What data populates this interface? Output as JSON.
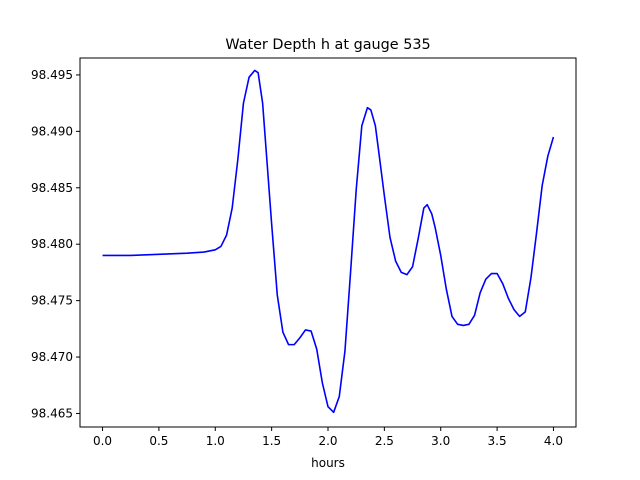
{
  "chart_data": {
    "type": "line",
    "title": "Water Depth h at gauge 535",
    "xlabel": "hours",
    "ylabel": "",
    "xlim": [
      -0.2,
      4.2
    ],
    "ylim": [
      98.4638,
      98.4965
    ],
    "grid": false,
    "legend": "none",
    "x_ticks": [
      0.0,
      0.5,
      1.0,
      1.5,
      2.0,
      2.5,
      3.0,
      3.5,
      4.0
    ],
    "x_tick_labels": [
      "0.0",
      "0.5",
      "1.0",
      "1.5",
      "2.0",
      "2.5",
      "3.0",
      "3.5",
      "4.0"
    ],
    "y_ticks": [
      98.465,
      98.47,
      98.475,
      98.48,
      98.485,
      98.49,
      98.495
    ],
    "y_tick_labels": [
      "98.465",
      "98.470",
      "98.475",
      "98.480",
      "98.485",
      "98.490",
      "98.495"
    ],
    "series": [
      {
        "color": "#0000ff",
        "x": [
          0.0,
          0.25,
          0.5,
          0.75,
          0.9,
          1.0,
          1.05,
          1.1,
          1.15,
          1.2,
          1.25,
          1.3,
          1.35,
          1.38,
          1.42,
          1.45,
          1.5,
          1.55,
          1.6,
          1.65,
          1.7,
          1.75,
          1.8,
          1.85,
          1.9,
          1.95,
          2.0,
          2.05,
          2.1,
          2.15,
          2.2,
          2.25,
          2.3,
          2.35,
          2.38,
          2.42,
          2.45,
          2.5,
          2.55,
          2.6,
          2.65,
          2.7,
          2.75,
          2.8,
          2.85,
          2.88,
          2.92,
          2.95,
          3.0,
          3.05,
          3.1,
          3.15,
          3.2,
          3.25,
          3.3,
          3.35,
          3.4,
          3.45,
          3.5,
          3.55,
          3.6,
          3.65,
          3.7,
          3.75,
          3.8,
          3.85,
          3.9,
          3.95,
          4.0
        ],
        "y": [
          98.479,
          98.479,
          98.4791,
          98.4792,
          98.4793,
          98.4795,
          98.4798,
          98.4808,
          98.4832,
          98.4875,
          98.4925,
          98.4948,
          98.4954,
          98.4952,
          98.4925,
          98.4885,
          98.4818,
          98.4755,
          98.4722,
          98.4711,
          98.4711,
          98.4717,
          98.4724,
          98.4723,
          98.4707,
          98.4677,
          98.4656,
          98.4651,
          98.4665,
          98.4705,
          98.4775,
          98.4848,
          98.4905,
          98.4921,
          98.4919,
          98.4905,
          98.4882,
          98.4843,
          98.4806,
          98.4785,
          98.4775,
          98.4773,
          98.478,
          98.4805,
          98.4832,
          98.4835,
          98.4827,
          98.4815,
          98.479,
          98.476,
          98.4736,
          98.4729,
          98.4728,
          98.4729,
          98.4737,
          98.4757,
          98.4769,
          98.4774,
          98.4774,
          98.4765,
          98.4752,
          98.4742,
          98.4736,
          98.474,
          98.477,
          98.481,
          98.4852,
          98.4878,
          98.4895
        ]
      }
    ]
  }
}
